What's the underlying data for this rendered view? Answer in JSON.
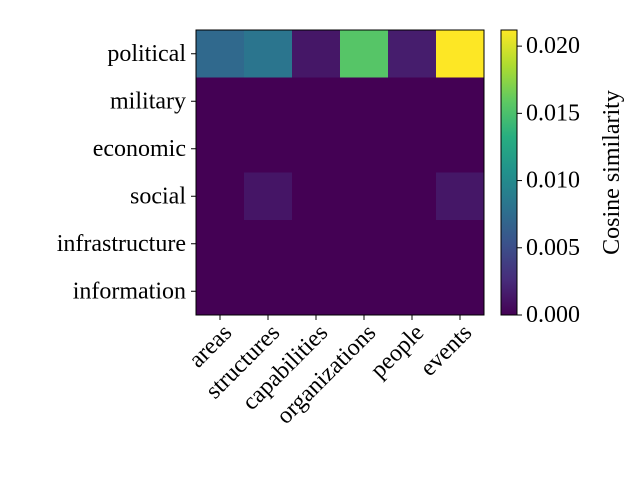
{
  "chart_data": {
    "type": "heatmap",
    "x_categories": [
      "areas",
      "structures",
      "capabilities",
      "organizations",
      "people",
      "events"
    ],
    "y_categories": [
      "political",
      "military",
      "economic",
      "social",
      "infrastructure",
      "information"
    ],
    "values": [
      [
        0.0072,
        0.0082,
        0.0013,
        0.0155,
        0.0017,
        0.0212
      ],
      [
        0.0,
        0.0,
        0.0,
        0.0,
        0.0,
        0.0
      ],
      [
        0.0,
        0.0,
        0.0,
        0.0,
        0.0,
        0.0
      ],
      [
        0.0,
        0.0012,
        0.0,
        0.0,
        0.0,
        0.0013
      ],
      [
        0.0,
        0.0,
        0.0,
        0.0,
        0.0,
        0.0
      ],
      [
        0.0,
        0.0,
        0.0,
        0.0,
        0.0,
        0.0
      ]
    ],
    "colorbar": {
      "label": "Cosine similarity",
      "min": 0.0,
      "max": 0.0212,
      "ticks": [
        0.0,
        0.005,
        0.01,
        0.015,
        0.02
      ],
      "tick_labels": [
        "0.000",
        "0.005",
        "0.010",
        "0.015",
        "0.020"
      ],
      "colormap": "viridis"
    },
    "grid": false
  }
}
